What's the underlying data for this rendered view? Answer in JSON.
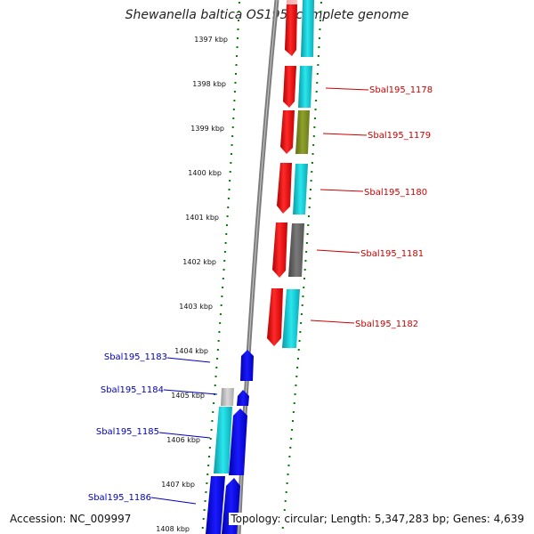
{
  "title": "Shewanella baltica OS195, complete genome",
  "footer": {
    "accession": "Accession: NC_009997",
    "summary": "Topology: circular; Length: 5,347,283 bp; Genes: 4,639"
  },
  "ruler": {
    "unit": "kbp",
    "ticks": [
      "1397 kbp",
      "1398 kbp",
      "1399 kbp",
      "1400 kbp",
      "1401 kbp",
      "1402 kbp",
      "1403 kbp",
      "1404 kbp",
      "1405 kbp",
      "1406 kbp",
      "1407 kbp",
      "1408 kbp"
    ]
  },
  "genes_right": [
    {
      "label": "Sbal195_1178"
    },
    {
      "label": "Sbal195_1179"
    },
    {
      "label": "Sbal195_1180"
    },
    {
      "label": "Sbal195_1181"
    },
    {
      "label": "Sbal195_1182"
    }
  ],
  "genes_left": [
    {
      "label": "Sbal195_1183"
    },
    {
      "label": "Sbal195_1184"
    },
    {
      "label": "Sbal195_1185"
    },
    {
      "label": "Sbal195_1186"
    }
  ],
  "colors": {
    "forward_strand": "#ee0000",
    "reverse_strand": "#0000ee",
    "cyan": "#00c8d0",
    "olive": "#7a8c20",
    "grey": "#666666",
    "light_grey": "#bbbbbb",
    "label_right": "#cc0000",
    "label_left": "#0000bb",
    "tick_green": "#0a7a0a"
  }
}
